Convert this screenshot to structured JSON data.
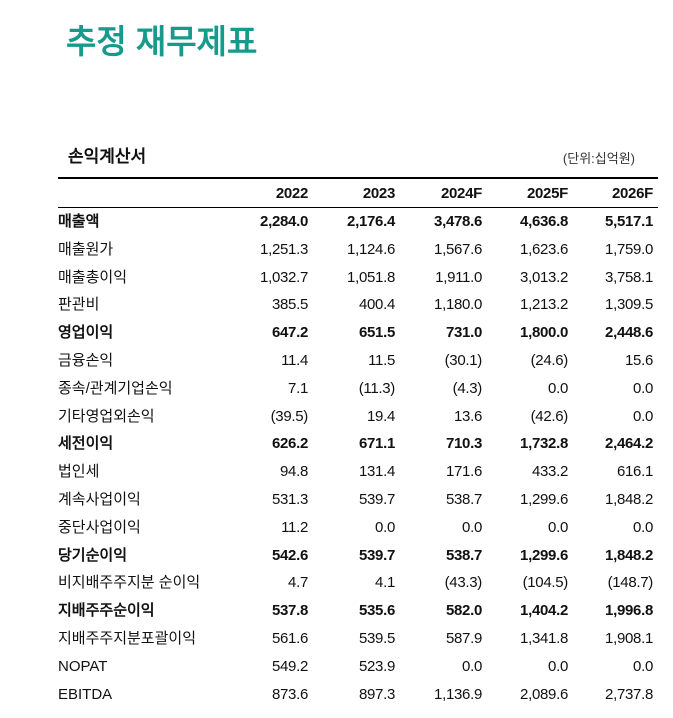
{
  "title": "추정 재무제표",
  "section": {
    "title": "손익계산서",
    "unit": "(단위:십억원)"
  },
  "table": {
    "header": [
      "2022",
      "2023",
      "2024F",
      "2025F",
      "2026F"
    ],
    "rows": [
      {
        "label": "매출액",
        "bold": true,
        "cells": [
          "2,284.0",
          "2,176.4",
          "3,478.6",
          "4,636.8",
          "5,517.1"
        ]
      },
      {
        "label": "매출원가",
        "bold": false,
        "cells": [
          "1,251.3",
          "1,124.6",
          "1,567.6",
          "1,623.6",
          "1,759.0"
        ]
      },
      {
        "label": "매출총이익",
        "bold": false,
        "cells": [
          "1,032.7",
          "1,051.8",
          "1,911.0",
          "3,013.2",
          "3,758.1"
        ]
      },
      {
        "label": "판관비",
        "bold": false,
        "cells": [
          "385.5",
          "400.4",
          "1,180.0",
          "1,213.2",
          "1,309.5"
        ]
      },
      {
        "label": "영업이익",
        "bold": true,
        "cells": [
          "647.2",
          "651.5",
          "731.0",
          "1,800.0",
          "2,448.6"
        ]
      },
      {
        "label": "금융손익",
        "bold": false,
        "cells": [
          "11.4",
          "11.5",
          "(30.1)",
          "(24.6)",
          "15.6"
        ]
      },
      {
        "label": "종속/관계기업손익",
        "bold": false,
        "cells": [
          "7.1",
          "(11.3)",
          "(4.3)",
          "0.0",
          "0.0"
        ]
      },
      {
        "label": "기타영업외손익",
        "bold": false,
        "cells": [
          "(39.5)",
          "19.4",
          "13.6",
          "(42.6)",
          "0.0"
        ]
      },
      {
        "label": "세전이익",
        "bold": true,
        "cells": [
          "626.2",
          "671.1",
          "710.3",
          "1,732.8",
          "2,464.2"
        ]
      },
      {
        "label": "법인세",
        "bold": false,
        "cells": [
          "94.8",
          "131.4",
          "171.6",
          "433.2",
          "616.1"
        ]
      },
      {
        "label": "계속사업이익",
        "bold": false,
        "cells": [
          "531.3",
          "539.7",
          "538.7",
          "1,299.6",
          "1,848.2"
        ]
      },
      {
        "label": "중단사업이익",
        "bold": false,
        "cells": [
          "11.2",
          "0.0",
          "0.0",
          "0.0",
          "0.0"
        ]
      },
      {
        "label": "당기순이익",
        "bold": true,
        "cells": [
          "542.6",
          "539.7",
          "538.7",
          "1,299.6",
          "1,848.2"
        ]
      },
      {
        "label": "비지배주주지분 순이익",
        "bold": false,
        "cells": [
          "4.7",
          "4.1",
          "(43.3)",
          "(104.5)",
          "(148.7)"
        ]
      },
      {
        "label": "지배주주순이익",
        "bold": true,
        "cells": [
          "537.8",
          "535.6",
          "582.0",
          "1,404.2",
          "1,996.8"
        ]
      },
      {
        "label": "지배주주지분포괄이익",
        "bold": false,
        "cells": [
          "561.6",
          "539.5",
          "587.9",
          "1,341.8",
          "1,908.1"
        ]
      },
      {
        "label": "NOPAT",
        "bold": false,
        "cells": [
          "549.2",
          "523.9",
          "0.0",
          "0.0",
          "0.0"
        ]
      },
      {
        "label": "EBITDA",
        "bold": false,
        "cells": [
          "873.6",
          "897.3",
          "1,136.9",
          "2,089.6",
          "2,737.8"
        ]
      }
    ]
  }
}
